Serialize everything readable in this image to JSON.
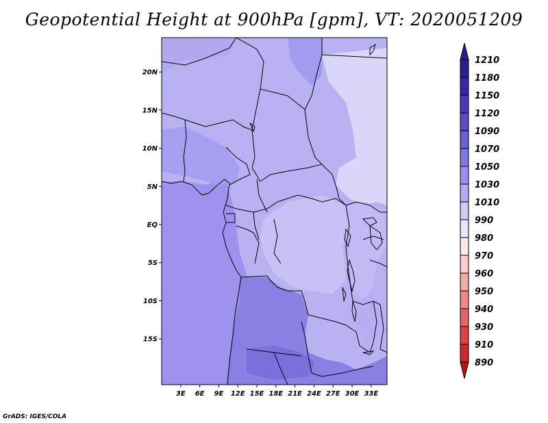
{
  "title": "Geopotential Height at 900hPa [gpm], VT: 2020051209",
  "credit": "GrADS: IGES/COLA",
  "map": {
    "lat_range": [
      -21,
      24.5
    ],
    "lon_range": [
      0,
      35.5
    ],
    "lat_ticks": [
      {
        "value": 20,
        "label": "20N"
      },
      {
        "value": 15,
        "label": "15N"
      },
      {
        "value": 10,
        "label": "10N"
      },
      {
        "value": 5,
        "label": "5N"
      },
      {
        "value": 0,
        "label": "EQ"
      },
      {
        "value": -5,
        "label": "5S"
      },
      {
        "value": -10,
        "label": "10S"
      },
      {
        "value": -15,
        "label": "15S"
      }
    ],
    "lon_ticks": [
      {
        "value": 3,
        "label": "3E"
      },
      {
        "value": 6,
        "label": "6E"
      },
      {
        "value": 9,
        "label": "9E"
      },
      {
        "value": 12,
        "label": "12E"
      },
      {
        "value": 15,
        "label": "15E"
      },
      {
        "value": 18,
        "label": "18E"
      },
      {
        "value": 21,
        "label": "21E"
      },
      {
        "value": 24,
        "label": "24E"
      },
      {
        "value": 27,
        "label": "27E"
      },
      {
        "value": 30,
        "label": "30E"
      },
      {
        "value": 33,
        "label": "33E"
      }
    ]
  },
  "colorbar": {
    "levels": [
      "1210",
      "1180",
      "1150",
      "1120",
      "1090",
      "1070",
      "1050",
      "1030",
      "1010",
      "990",
      "980",
      "970",
      "960",
      "950",
      "940",
      "930",
      "910",
      "890"
    ],
    "colors": [
      "#2a1f8c",
      "#3828a8",
      "#4a3ab8",
      "#5a4cc8",
      "#6c5fd4",
      "#8377e0",
      "#9a90ea",
      "#b3acf0",
      "#cfcbf6",
      "#e8e6fb",
      "#fde8e8",
      "#fbcccc",
      "#f5aaaa",
      "#ee8888",
      "#e56666",
      "#db4444",
      "#cc2828",
      "#b81414"
    ]
  }
}
